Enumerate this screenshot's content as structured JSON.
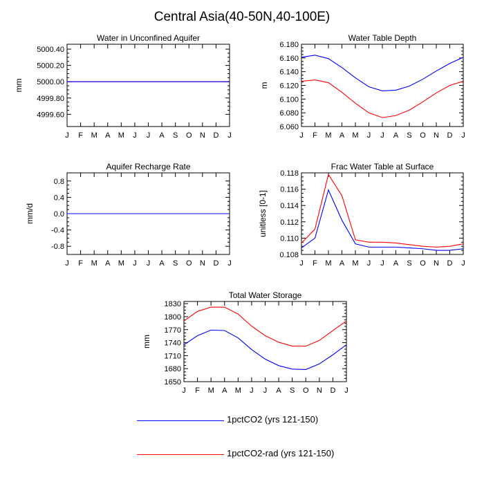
{
  "figure": {
    "title": "Central Asia(40-50N,40-100E)"
  },
  "legend": [
    {
      "label": "1pctCO2 (yrs 121-150)",
      "color": "#0000ff"
    },
    {
      "label": "1pctCO2-rad (yrs 121-150)",
      "color": "#ff0000"
    }
  ],
  "chart_data": [
    {
      "type": "line",
      "title": "Water in Unconfined Aquifer",
      "ylabel": "mm",
      "categories": [
        "J",
        "F",
        "M",
        "A",
        "M",
        "J",
        "J",
        "A",
        "S",
        "O",
        "N",
        "D",
        "J"
      ],
      "ylim": [
        4999.45,
        5000.46
      ],
      "yticks": [
        4999.6,
        4999.8,
        5000.0,
        5000.2,
        5000.4
      ],
      "ytick_labels": [
        "4999.60",
        "4999.80",
        "5000.00",
        "5000.20",
        "5000.40"
      ],
      "series": [
        {
          "name": "1pctCO2 (yrs 121-150)",
          "color": "#0000ff",
          "values": [
            5000.0,
            5000.0,
            5000.0,
            5000.0,
            5000.0,
            5000.0,
            5000.0,
            5000.0,
            5000.0,
            5000.0,
            5000.0,
            5000.0,
            5000.0
          ]
        },
        {
          "name": "1pctCO2-rad (yrs 121-150)",
          "color": "#ff0000",
          "values": [
            5000.0,
            5000.0,
            5000.0,
            5000.0,
            5000.0,
            5000.0,
            5000.0,
            5000.0,
            5000.0,
            5000.0,
            5000.0,
            5000.0,
            5000.0
          ]
        }
      ]
    },
    {
      "type": "line",
      "title": "Water Table Depth",
      "ylabel": "m",
      "categories": [
        "J",
        "F",
        "M",
        "A",
        "M",
        "J",
        "J",
        "A",
        "S",
        "O",
        "N",
        "D",
        "J"
      ],
      "ylim": [
        6.06,
        6.18
      ],
      "yticks": [
        6.06,
        6.08,
        6.1,
        6.12,
        6.14,
        6.16,
        6.18
      ],
      "ytick_labels": [
        "6.060",
        "6.080",
        "6.100",
        "6.120",
        "6.140",
        "6.160",
        "6.180"
      ],
      "series": [
        {
          "name": "1pctCO2 (yrs 121-150)",
          "color": "#0000ff",
          "values": [
            6.161,
            6.164,
            6.159,
            6.146,
            6.131,
            6.118,
            6.112,
            6.113,
            6.119,
            6.129,
            6.141,
            6.152,
            6.161
          ]
        },
        {
          "name": "1pctCO2-rad (yrs 121-150)",
          "color": "#ff0000",
          "values": [
            6.126,
            6.128,
            6.124,
            6.11,
            6.094,
            6.08,
            6.073,
            6.076,
            6.084,
            6.096,
            6.109,
            6.12,
            6.126
          ]
        }
      ]
    },
    {
      "type": "line",
      "title": "Aquifer Recharge Rate",
      "ylabel": "mm/d",
      "categories": [
        "J",
        "F",
        "M",
        "A",
        "M",
        "J",
        "J",
        "A",
        "S",
        "O",
        "N",
        "D",
        "J"
      ],
      "ylim": [
        -1.0,
        1.0
      ],
      "yticks": [
        -0.8,
        -0.4,
        0.0,
        0.4,
        0.8
      ],
      "ytick_labels": [
        "-0.8",
        "-0.4",
        "0.0",
        "0.4",
        "0.8"
      ],
      "series": [
        {
          "name": "1pctCO2 (yrs 121-150)",
          "color": "#0000ff",
          "values": [
            0,
            0,
            0,
            0,
            0,
            0,
            0,
            0,
            0,
            0,
            0,
            0,
            0
          ]
        },
        {
          "name": "1pctCO2-rad (yrs 121-150)",
          "color": "#ff0000",
          "values": [
            0,
            0,
            0,
            0,
            0,
            0,
            0,
            0,
            0,
            0,
            0,
            0,
            0
          ]
        }
      ]
    },
    {
      "type": "line",
      "title": "Frac Water Table at Surface",
      "ylabel": "unitless [0-1]",
      "categories": [
        "J",
        "F",
        "M",
        "A",
        "M",
        "J",
        "J",
        "A",
        "S",
        "O",
        "N",
        "D",
        "J"
      ],
      "ylim": [
        0.108,
        0.118
      ],
      "yticks": [
        0.108,
        0.11,
        0.112,
        0.114,
        0.116,
        0.118
      ],
      "ytick_labels": [
        "0.108",
        "0.110",
        "0.112",
        "0.114",
        "0.116",
        "0.118"
      ],
      "series": [
        {
          "name": "1pctCO2 (yrs 121-150)",
          "color": "#0000ff",
          "values": [
            0.1088,
            0.11,
            0.1159,
            0.1122,
            0.1093,
            0.1089,
            0.1089,
            0.1089,
            0.1088,
            0.1087,
            0.1085,
            0.1085,
            0.1087
          ]
        },
        {
          "name": "1pctCO2-rad (yrs 121-150)",
          "color": "#ff0000",
          "values": [
            0.1094,
            0.1111,
            0.1178,
            0.1152,
            0.1098,
            0.1095,
            0.1095,
            0.1094,
            0.1092,
            0.109,
            0.1089,
            0.109,
            0.1093
          ]
        }
      ]
    },
    {
      "type": "line",
      "title": "Total Water Storage",
      "ylabel": "mm",
      "categories": [
        "J",
        "F",
        "M",
        "A",
        "M",
        "J",
        "J",
        "A",
        "S",
        "O",
        "N",
        "D",
        "J"
      ],
      "ylim": [
        1650,
        1835
      ],
      "yticks": [
        1650,
        1680,
        1710,
        1740,
        1770,
        1800,
        1830
      ],
      "ytick_labels": [
        "1650",
        "1680",
        "1710",
        "1740",
        "1770",
        "1800",
        "1830"
      ],
      "series": [
        {
          "name": "1pctCO2 (yrs 121-150)",
          "color": "#0000ff",
          "values": [
            1735,
            1756,
            1769,
            1768,
            1751,
            1724,
            1702,
            1687,
            1679,
            1678,
            1691,
            1712,
            1735
          ]
        },
        {
          "name": "1pctCO2-rad (yrs 121-150)",
          "color": "#ff0000",
          "values": [
            1790,
            1812,
            1822,
            1822,
            1806,
            1778,
            1756,
            1741,
            1732,
            1732,
            1745,
            1768,
            1790
          ]
        }
      ]
    }
  ]
}
